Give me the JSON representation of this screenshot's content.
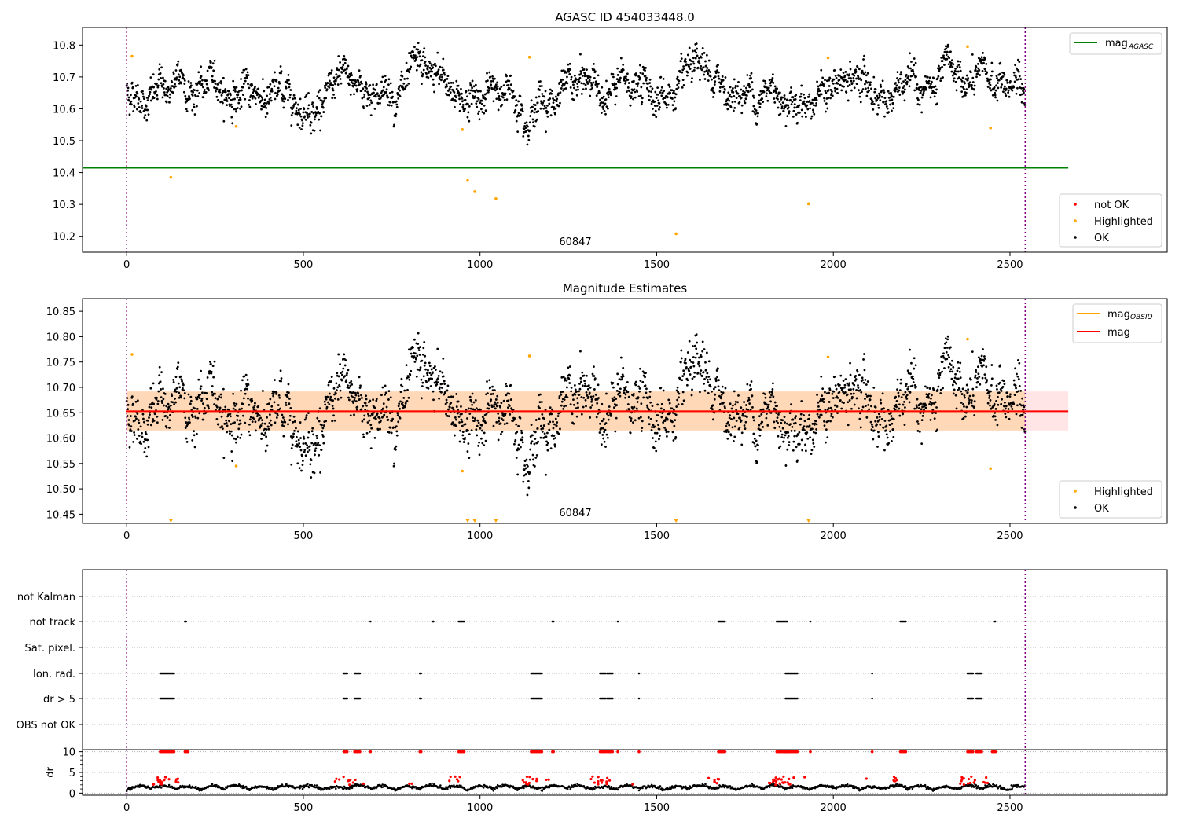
{
  "chart_data": [
    {
      "type": "scatter",
      "title": "AGASC ID 454033448.0",
      "xlim": [
        -125,
        2945
      ],
      "ylim": [
        10.15,
        10.855
      ],
      "xticks": [
        "0",
        "500",
        "1000",
        "1500",
        "2000",
        "2500"
      ],
      "yticks": [
        "10.2",
        "10.3",
        "10.4",
        "10.5",
        "10.6",
        "10.7",
        "10.8"
      ],
      "annotation": "60847",
      "vlines": [
        0,
        2543
      ],
      "hline": {
        "name": "mag_AGASC",
        "value": 10.415,
        "color": "#008000",
        "x_end": 2665
      },
      "legend_lines": [
        {
          "label": "mag",
          "sub": "AGASC",
          "color": "#008000"
        }
      ],
      "legend_points": [
        {
          "label": "not OK",
          "color": "#ff0000"
        },
        {
          "label": "Highlighted",
          "color": "#ffa500"
        },
        {
          "label": "OK",
          "color": "#000000"
        }
      ],
      "highlighted": [
        [
          15,
          10.765
        ],
        [
          125,
          10.385
        ],
        [
          310,
          10.545
        ],
        [
          950,
          10.535
        ],
        [
          965,
          10.375
        ],
        [
          985,
          10.34
        ],
        [
          1045,
          10.318
        ],
        [
          1140,
          10.762
        ],
        [
          1555,
          10.208
        ],
        [
          1930,
          10.302
        ],
        [
          1985,
          10.76
        ],
        [
          2380,
          10.795
        ],
        [
          2445,
          10.54
        ]
      ],
      "ok_series": {
        "name": "OK",
        "x_range": [
          0,
          2543
        ],
        "y_mean": 10.655,
        "y_spread": 0.05
      }
    },
    {
      "type": "scatter",
      "title": "Magnitude Estimates",
      "xlim": [
        -125,
        2945
      ],
      "ylim": [
        10.432,
        10.875
      ],
      "xticks": [
        "0",
        "500",
        "1000",
        "1500",
        "2000",
        "2500"
      ],
      "yticks": [
        "10.45",
        "10.50",
        "10.55",
        "10.60",
        "10.65",
        "10.70",
        "10.75",
        "10.80",
        "10.85"
      ],
      "annotation": "60847",
      "vlines": [
        0,
        2543
      ],
      "mag_line": {
        "value": 10.653,
        "color": "#ff0000",
        "x_end": 2665
      },
      "mag_band": {
        "low": 10.615,
        "high": 10.692,
        "x_end": 2665
      },
      "obsid_band": {
        "low": 10.615,
        "high": 10.692,
        "x_end": 2543,
        "color": "#ffa500"
      },
      "legend_lines": [
        {
          "label": "mag",
          "sub": "OBSID",
          "color": "#ffa500"
        },
        {
          "label": "mag",
          "sub": "",
          "color": "#ff0000"
        }
      ],
      "legend_points": [
        {
          "label": "Highlighted",
          "color": "#ffa500"
        },
        {
          "label": "OK",
          "color": "#000000"
        }
      ],
      "highlighted": [
        [
          15,
          10.765
        ],
        [
          310,
          10.545
        ],
        [
          950,
          10.535
        ],
        [
          1140,
          10.762
        ],
        [
          1985,
          10.76
        ],
        [
          2380,
          10.795
        ],
        [
          2445,
          10.54
        ]
      ],
      "below_markers": [
        125,
        965,
        985,
        1045,
        1555,
        1930
      ]
    },
    {
      "type": "scatter",
      "title": "",
      "xlim": [
        -125,
        2945
      ],
      "categories": [
        "not Kalman",
        "not track",
        "Sat. pixel.",
        "Ion. rad.",
        "dr > 5",
        "OBS not OK"
      ],
      "flags": {
        "not track": [
          [
            165,
            170
          ],
          [
            690,
            692
          ],
          [
            865,
            868
          ],
          [
            940,
            955
          ],
          [
            1205,
            1208
          ],
          [
            1390,
            1392
          ],
          [
            1675,
            1695
          ],
          [
            1840,
            1870
          ],
          [
            1935,
            1937
          ],
          [
            2190,
            2205
          ],
          [
            2455,
            2460
          ]
        ],
        "Ion. rad.": [
          [
            95,
            135
          ],
          [
            615,
            625
          ],
          [
            645,
            660
          ],
          [
            830,
            835
          ],
          [
            1145,
            1175
          ],
          [
            1340,
            1355
          ],
          [
            1360,
            1375
          ],
          [
            1450,
            1452
          ],
          [
            1865,
            1900
          ],
          [
            2110,
            2112
          ],
          [
            2380,
            2395
          ],
          [
            2405,
            2420
          ]
        ],
        "dr > 5": [
          [
            95,
            135
          ],
          [
            615,
            625
          ],
          [
            645,
            660
          ],
          [
            830,
            835
          ],
          [
            1145,
            1175
          ],
          [
            1340,
            1355
          ],
          [
            1360,
            1375
          ],
          [
            1450,
            1452
          ],
          [
            1865,
            1900
          ],
          [
            2110,
            2112
          ],
          [
            2380,
            2395
          ],
          [
            2405,
            2420
          ]
        ]
      },
      "vlines": [
        0,
        2543
      ]
    },
    {
      "type": "scatter",
      "title": "",
      "ylabel": "dr",
      "xlim": [
        -125,
        2945
      ],
      "ylim": [
        -0.5,
        10.5
      ],
      "xticks": [
        "0",
        "500",
        "1000",
        "1500",
        "2000",
        "2500"
      ],
      "yticks": [
        "0",
        "5",
        "10"
      ],
      "clip_value": 10,
      "clipped_red": [
        [
          95,
          135
        ],
        [
          165,
          175
        ],
        [
          615,
          625
        ],
        [
          645,
          660
        ],
        [
          690,
          692
        ],
        [
          830,
          835
        ],
        [
          940,
          955
        ],
        [
          1145,
          1175
        ],
        [
          1205,
          1208
        ],
        [
          1340,
          1355
        ],
        [
          1360,
          1375
        ],
        [
          1390,
          1392
        ],
        [
          1450,
          1452
        ],
        [
          1675,
          1695
        ],
        [
          1840,
          1870
        ],
        [
          1865,
          1900
        ],
        [
          1935,
          1937
        ],
        [
          2110,
          2112
        ],
        [
          2190,
          2205
        ],
        [
          2380,
          2395
        ],
        [
          2405,
          2420
        ],
        [
          2450,
          2460
        ]
      ],
      "vlines": [
        0,
        2543
      ]
    }
  ]
}
